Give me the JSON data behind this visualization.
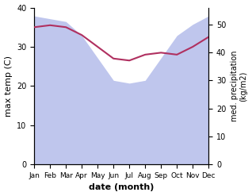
{
  "months": [
    "Jan",
    "Feb",
    "Mar",
    "Apr",
    "May",
    "Jun",
    "Jul",
    "Aug",
    "Sep",
    "Oct",
    "Nov",
    "Dec"
  ],
  "month_indices": [
    0,
    1,
    2,
    3,
    4,
    5,
    6,
    7,
    8,
    9,
    10,
    11
  ],
  "temp_max": [
    35,
    35.5,
    35,
    33,
    30,
    27,
    26.5,
    28,
    28.5,
    28,
    30,
    32.5
  ],
  "precip": [
    53,
    52,
    51,
    46,
    38,
    30,
    29,
    30,
    38,
    46,
    50,
    53
  ],
  "temp_color": "#b03060",
  "precip_fill_color": "#aab4e8",
  "precip_fill_alpha": 0.75,
  "xlabel": "date (month)",
  "ylabel_left": "max temp (C)",
  "ylabel_right": "med. precipitation\n(kg/m2)",
  "ylim_left": [
    0,
    40
  ],
  "ylim_right": [
    0,
    56
  ],
  "yticks_left": [
    0,
    10,
    20,
    30,
    40
  ],
  "yticks_right": [
    0,
    10,
    20,
    30,
    40,
    50
  ],
  "background_color": "#ffffff"
}
